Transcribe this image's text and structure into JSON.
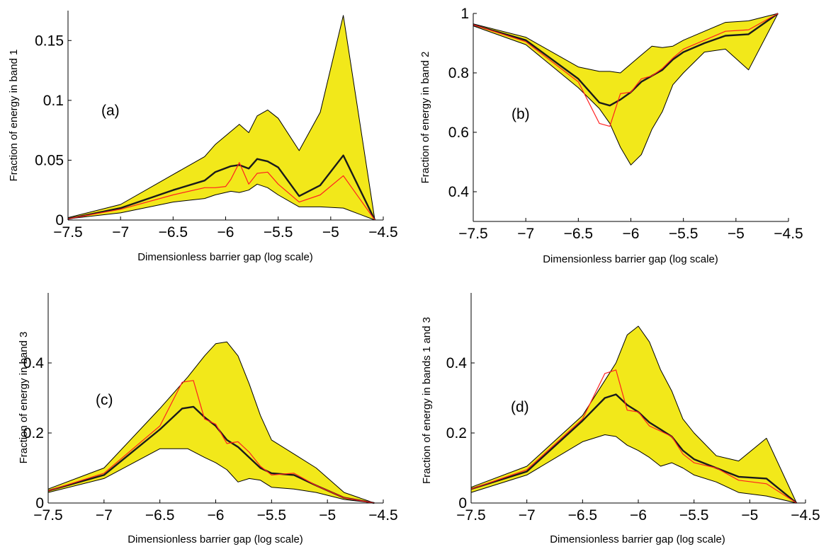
{
  "chart_data": [
    {
      "type": "area",
      "panel_label": "(a)",
      "xlabel": "Dimensionless barrier gap (log scale)",
      "ylabel": "Fraction of energy in band 1",
      "xlim": [
        -7.5,
        -4.5
      ],
      "ylim": [
        0,
        0.175
      ],
      "xticks": [
        -7.5,
        -7,
        -6.5,
        -6,
        -5.5,
        -5,
        -4.5
      ],
      "xtick_labels": [
        "−7.5",
        "−7",
        "−6.5",
        "−6",
        "−5.5",
        "−5",
        "−4.5"
      ],
      "yticks": [
        0,
        0.05,
        0.1,
        0.15
      ],
      "ytick_labels": [
        "0",
        "0.05",
        "0.1",
        "0.15"
      ],
      "band_color": "#f2e81a",
      "series": [
        {
          "role": "upper",
          "color": "#000000",
          "x": [
            -7.5,
            -7,
            -6.5,
            -6.2,
            -6.1,
            -5.95,
            -5.87,
            -5.78,
            -5.7,
            -5.6,
            -5.5,
            -5.3,
            -5.1,
            -4.88,
            -4.58
          ],
          "y": [
            0.002,
            0.013,
            0.038,
            0.053,
            0.063,
            0.074,
            0.08,
            0.073,
            0.087,
            0.092,
            0.085,
            0.058,
            0.09,
            0.171,
            0
          ]
        },
        {
          "role": "lower",
          "color": "#000000",
          "x": [
            -7.5,
            -7,
            -6.5,
            -6.2,
            -6.1,
            -5.95,
            -5.87,
            -5.78,
            -5.7,
            -5.6,
            -5.5,
            -5.3,
            -5.1,
            -4.88,
            -4.58
          ],
          "y": [
            0.001,
            0.006,
            0.015,
            0.018,
            0.021,
            0.024,
            0.023,
            0.025,
            0.03,
            0.027,
            0.021,
            0.011,
            0.011,
            0.01,
            0
          ]
        },
        {
          "role": "mean",
          "color": "#1a1a1a",
          "x": [
            -7.5,
            -7,
            -6.5,
            -6.2,
            -6.1,
            -5.95,
            -5.87,
            -5.78,
            -5.7,
            -5.6,
            -5.5,
            -5.3,
            -5.1,
            -4.88,
            -4.58
          ],
          "y": [
            0.001,
            0.01,
            0.025,
            0.033,
            0.04,
            0.045,
            0.046,
            0.043,
            0.051,
            0.049,
            0.044,
            0.02,
            0.029,
            0.054,
            0
          ]
        },
        {
          "role": "red",
          "color": "#ff2020",
          "x": [
            -7.5,
            -7,
            -6.5,
            -6.2,
            -6.1,
            -6,
            -5.95,
            -5.87,
            -5.78,
            -5.7,
            -5.6,
            -5.5,
            -5.3,
            -5.1,
            -4.88,
            -4.58
          ],
          "y": [
            0.001,
            0.009,
            0.021,
            0.027,
            0.027,
            0.028,
            0.034,
            0.048,
            0.03,
            0.039,
            0.04,
            0.03,
            0.015,
            0.021,
            0.037,
            0
          ]
        }
      ]
    },
    {
      "type": "area",
      "panel_label": "(b)",
      "xlabel": "Dimensionless barrier gap (log scale)",
      "ylabel": "Fraction of energy in band 2",
      "xlim": [
        -7.5,
        -4.5
      ],
      "ylim": [
        0.3,
        1
      ],
      "xticks": [
        -7.5,
        -7,
        -6.5,
        -6,
        -5.5,
        -5,
        -4.5
      ],
      "xtick_labels": [
        "−7.5",
        "−7",
        "−6.5",
        "−6",
        "−5.5",
        "−5",
        "−4.5"
      ],
      "yticks": [
        0.4,
        0.6,
        0.8,
        1
      ],
      "ytick_labels": [
        "0.4",
        "0.6",
        "0.8",
        "1"
      ],
      "band_color": "#f2e81a",
      "series": [
        {
          "role": "upper",
          "color": "#000000",
          "x": [
            -7.5,
            -7,
            -6.5,
            -6.3,
            -6.2,
            -6.1,
            -6,
            -5.9,
            -5.8,
            -5.7,
            -5.6,
            -5.5,
            -5.3,
            -5.1,
            -4.88,
            -4.6
          ],
          "y": [
            0.965,
            0.92,
            0.82,
            0.805,
            0.805,
            0.8,
            0.83,
            0.86,
            0.89,
            0.885,
            0.89,
            0.91,
            0.94,
            0.97,
            0.975,
            1
          ]
        },
        {
          "role": "lower",
          "color": "#000000",
          "x": [
            -7.5,
            -7,
            -6.5,
            -6.3,
            -6.2,
            -6.1,
            -6,
            -5.9,
            -5.8,
            -5.7,
            -5.6,
            -5.5,
            -5.3,
            -5.1,
            -4.88,
            -4.6
          ],
          "y": [
            0.958,
            0.895,
            0.75,
            0.68,
            0.63,
            0.55,
            0.49,
            0.525,
            0.61,
            0.67,
            0.76,
            0.8,
            0.87,
            0.88,
            0.81,
            1
          ]
        },
        {
          "role": "mean",
          "color": "#1a1a1a",
          "x": [
            -7.5,
            -7,
            -6.5,
            -6.3,
            -6.2,
            -6.1,
            -6,
            -5.9,
            -5.8,
            -5.7,
            -5.6,
            -5.5,
            -5.3,
            -5.1,
            -4.88,
            -4.6
          ],
          "y": [
            0.962,
            0.91,
            0.78,
            0.7,
            0.69,
            0.71,
            0.735,
            0.77,
            0.79,
            0.81,
            0.845,
            0.87,
            0.9,
            0.925,
            0.93,
            1
          ]
        },
        {
          "role": "red",
          "color": "#ff2020",
          "x": [
            -7.5,
            -7,
            -6.5,
            -6.3,
            -6.2,
            -6.1,
            -6,
            -5.9,
            -5.8,
            -5.7,
            -5.6,
            -5.5,
            -5.3,
            -5.1,
            -4.88,
            -4.6
          ],
          "y": [
            0.962,
            0.905,
            0.77,
            0.63,
            0.62,
            0.73,
            0.735,
            0.78,
            0.79,
            0.815,
            0.85,
            0.88,
            0.91,
            0.94,
            0.945,
            1
          ]
        }
      ]
    },
    {
      "type": "area",
      "panel_label": "(c)",
      "xlabel": "Dimensionless barrier gap (log scale)",
      "ylabel": "Fraction of energy in band 3",
      "xlim": [
        -7.5,
        -4.5
      ],
      "ylim": [
        0,
        0.6
      ],
      "xticks": [
        -7.5,
        -7,
        -6.5,
        -6,
        -5.5,
        -5,
        -4.5
      ],
      "xtick_labels": [
        "−7.5",
        "−7",
        "−6.5",
        "−6",
        "−5.5",
        "−5",
        "−4.5"
      ],
      "yticks": [
        0,
        0.2,
        0.4
      ],
      "ytick_labels": [
        "0",
        "0.2",
        "0.4"
      ],
      "band_color": "#f2e81a",
      "series": [
        {
          "role": "upper",
          "color": "#000000",
          "x": [
            -7.5,
            -7,
            -6.5,
            -6.25,
            -6.1,
            -6,
            -5.9,
            -5.8,
            -5.7,
            -5.6,
            -5.5,
            -5.3,
            -5.1,
            -4.85,
            -4.58
          ],
          "y": [
            0.04,
            0.1,
            0.27,
            0.36,
            0.42,
            0.455,
            0.46,
            0.42,
            0.34,
            0.25,
            0.18,
            0.14,
            0.1,
            0.03,
            0
          ]
        },
        {
          "role": "lower",
          "color": "#000000",
          "x": [
            -7.5,
            -7,
            -6.5,
            -6.25,
            -6.1,
            -6,
            -5.9,
            -5.8,
            -5.7,
            -5.6,
            -5.5,
            -5.3,
            -5.1,
            -4.85,
            -4.58
          ],
          "y": [
            0.03,
            0.07,
            0.155,
            0.155,
            0.13,
            0.115,
            0.095,
            0.06,
            0.07,
            0.065,
            0.045,
            0.04,
            0.03,
            0.01,
            0
          ]
        },
        {
          "role": "mean",
          "color": "#1a1a1a",
          "x": [
            -7.5,
            -7,
            -6.5,
            -6.3,
            -6.2,
            -6.1,
            -6,
            -5.9,
            -5.8,
            -5.7,
            -5.6,
            -5.5,
            -5.3,
            -5.1,
            -4.85,
            -4.58
          ],
          "y": [
            0.035,
            0.08,
            0.21,
            0.27,
            0.275,
            0.245,
            0.22,
            0.18,
            0.16,
            0.13,
            0.1,
            0.085,
            0.08,
            0.05,
            0.015,
            0
          ]
        },
        {
          "role": "red",
          "color": "#ff2020",
          "x": [
            -7.5,
            -7,
            -6.5,
            -6.3,
            -6.2,
            -6.1,
            -6,
            -5.9,
            -5.8,
            -5.7,
            -5.6,
            -5.5,
            -5.3,
            -5.1,
            -4.85,
            -4.58
          ],
          "y": [
            0.035,
            0.085,
            0.22,
            0.345,
            0.35,
            0.24,
            0.225,
            0.17,
            0.175,
            0.145,
            0.105,
            0.08,
            0.085,
            0.05,
            0.015,
            0
          ]
        }
      ]
    },
    {
      "type": "area",
      "panel_label": "(d)",
      "xlabel": "Dimensionless barrier gap (log scale)",
      "ylabel": "Fraction of energy in bands 1 and 3",
      "xlim": [
        -7.5,
        -4.5
      ],
      "ylim": [
        0,
        0.6
      ],
      "xticks": [
        -7.5,
        -7,
        -6.5,
        -6,
        -5.5,
        -5,
        -4.5
      ],
      "xtick_labels": [
        "−7.5",
        "−7",
        "−6.5",
        "−6",
        "−5.5",
        "−5",
        "−4.5"
      ],
      "yticks": [
        0,
        0.2,
        0.4
      ],
      "ytick_labels": [
        "0",
        "0.2",
        "0.4"
      ],
      "band_color": "#f2e81a",
      "series": [
        {
          "role": "upper",
          "color": "#000000",
          "x": [
            -7.5,
            -7,
            -6.5,
            -6.3,
            -6.2,
            -6.1,
            -6,
            -5.9,
            -5.8,
            -5.7,
            -5.6,
            -5.5,
            -5.3,
            -5.1,
            -4.85,
            -4.58
          ],
          "y": [
            0.045,
            0.105,
            0.25,
            0.35,
            0.4,
            0.48,
            0.505,
            0.46,
            0.38,
            0.32,
            0.24,
            0.2,
            0.135,
            0.12,
            0.185,
            0
          ]
        },
        {
          "role": "lower",
          "color": "#000000",
          "x": [
            -7.5,
            -7,
            -6.5,
            -6.3,
            -6.2,
            -6.1,
            -6,
            -5.9,
            -5.8,
            -5.7,
            -5.6,
            -5.5,
            -5.3,
            -5.1,
            -4.85,
            -4.58
          ],
          "y": [
            0.03,
            0.08,
            0.175,
            0.195,
            0.19,
            0.165,
            0.15,
            0.13,
            0.105,
            0.115,
            0.1,
            0.08,
            0.06,
            0.03,
            0.02,
            0
          ]
        },
        {
          "role": "mean",
          "color": "#1a1a1a",
          "x": [
            -7.5,
            -7,
            -6.5,
            -6.3,
            -6.2,
            -6.1,
            -6,
            -5.9,
            -5.8,
            -5.7,
            -5.6,
            -5.5,
            -5.3,
            -5.1,
            -4.85,
            -4.58
          ],
          "y": [
            0.04,
            0.09,
            0.235,
            0.3,
            0.31,
            0.28,
            0.26,
            0.23,
            0.21,
            0.19,
            0.15,
            0.125,
            0.1,
            0.075,
            0.07,
            0
          ]
        },
        {
          "role": "red",
          "color": "#ff2020",
          "x": [
            -7.5,
            -7,
            -6.5,
            -6.3,
            -6.2,
            -6.1,
            -6,
            -5.9,
            -5.8,
            -5.7,
            -5.6,
            -5.5,
            -5.3,
            -5.1,
            -4.85,
            -4.58
          ],
          "y": [
            0.04,
            0.095,
            0.24,
            0.37,
            0.38,
            0.265,
            0.26,
            0.22,
            0.205,
            0.19,
            0.14,
            0.115,
            0.1,
            0.065,
            0.055,
            0
          ]
        }
      ]
    }
  ]
}
